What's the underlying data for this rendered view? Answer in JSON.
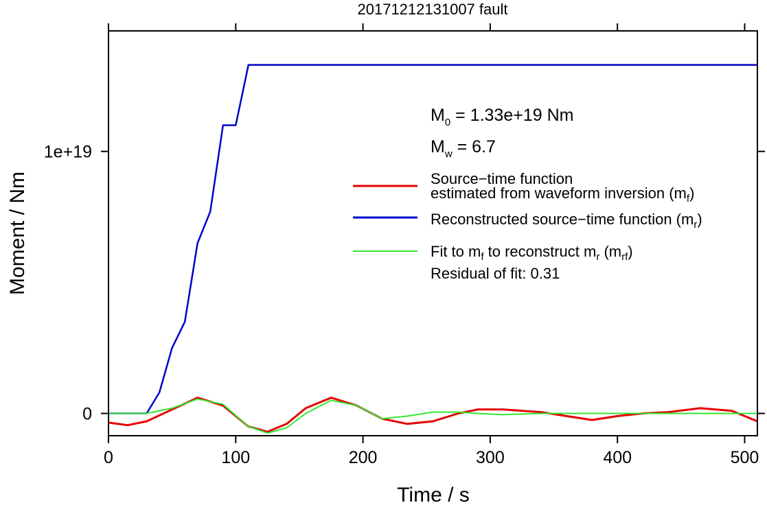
{
  "chart_data": {
    "type": "line",
    "title": "20171212131007 fault",
    "xlabel": "Time / s",
    "ylabel": "Moment / Nm",
    "xlim": [
      0,
      510
    ],
    "ylim": [
      -8.5e+17,
      1.46e+19
    ],
    "xticks": [
      0,
      100,
      200,
      300,
      400,
      500
    ],
    "xtick_labels": [
      "0",
      "100",
      "200",
      "300",
      "400",
      "500"
    ],
    "yticks": [
      0,
      1e+19
    ],
    "ytick_labels": [
      "0",
      "1e+19"
    ],
    "grid": false,
    "legend_position": "top-right",
    "annotations": {
      "m0": {
        "main": "M",
        "sub": "0",
        "rest": " = 1.33e+19 Nm"
      },
      "mw": {
        "main": "M",
        "sub": "w",
        "rest": " = 6.7"
      },
      "residual": "Residual of fit: 0.31"
    },
    "legend": [
      {
        "color": "#e60000",
        "line1": "Source−time function",
        "line2_pre": "estimated from waveform inversion (m",
        "line2_sub": "f",
        "line2_post": ")"
      },
      {
        "color": "#0000cc",
        "text_pre": "Reconstructed source−time function (m",
        "text_sub": "r",
        "text_post": ")"
      },
      {
        "color": "#33e633",
        "pre": "Fit to m",
        "sub1": "f",
        "mid": " to reconstruct m",
        "sub2": "r",
        "mid2": " (m",
        "sub3": "rf",
        "post": ")"
      }
    ],
    "series": [
      {
        "color": "#0000cc",
        "x": [
          0,
          30,
          40,
          50,
          60,
          70,
          80,
          90,
          100,
          110,
          510
        ],
        "y": [
          0,
          0,
          8e+17,
          2.5e+18,
          3.5e+18,
          6.5e+18,
          7.7e+18,
          1.1e+19,
          1.1e+19,
          1.33e+19,
          1.33e+19
        ]
      },
      {
        "color": "#e60000",
        "x": [
          0,
          15,
          30,
          50,
          70,
          90,
          110,
          125,
          140,
          155,
          175,
          195,
          215,
          235,
          255,
          275,
          290,
          310,
          340,
          360,
          380,
          400,
          420,
          440,
          465,
          490,
          510
        ],
        "y": [
          -3.5e+17,
          -4.5e+17,
          -3e+17,
          1.5e+17,
          6e+17,
          3e+17,
          -5e+17,
          -7e+17,
          -4e+17,
          2e+17,
          6e+17,
          3e+17,
          -2e+17,
          -4e+17,
          -3e+17,
          0.0,
          1.5e+17,
          1.5e+17,
          5e+16,
          -1e+17,
          -2.5e+17,
          -1e+17,
          0.0,
          5e+16,
          2e+17,
          1e+17,
          -3e+17
        ]
      },
      {
        "color": "#33e633",
        "x": [
          0,
          30,
          50,
          70,
          90,
          110,
          125,
          140,
          155,
          175,
          195,
          215,
          235,
          255,
          275,
          290,
          310,
          340,
          380,
          420,
          460,
          510
        ],
        "y": [
          0,
          0,
          2e+17,
          5.5e+17,
          3.5e+17,
          -5e+17,
          -7.5e+17,
          -5.5e+17,
          0.0,
          5e+17,
          3e+17,
          -2e+17,
          -1e+17,
          5e+16,
          5e+16,
          0.0,
          -5e+16,
          0.0,
          0.0,
          0.0,
          0.0,
          0.0
        ]
      }
    ]
  }
}
